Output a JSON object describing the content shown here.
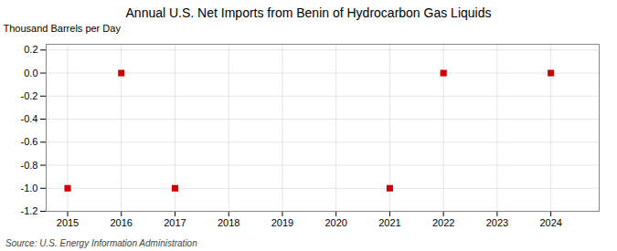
{
  "chart_data": {
    "type": "scatter",
    "title": "Annual U.S. Net Imports from Benin of Hydrocarbon Gas Liquids",
    "ylabel": "Thousand Barrels per Day",
    "source": "Source: U.S. Energy Information Administration",
    "x": [
      2015,
      2016,
      2017,
      2021,
      2022,
      2024
    ],
    "values": [
      -1,
      0,
      -1,
      -1,
      0,
      0
    ],
    "color": "#cc0000",
    "marker": "square",
    "xlim": [
      2014.6,
      2024.9
    ],
    "ylim": [
      -1.2,
      0.25
    ],
    "xticks": [
      2015,
      2016,
      2017,
      2018,
      2019,
      2020,
      2021,
      2022,
      2023,
      2024
    ],
    "yticks": [
      0.2,
      {
        "value": 0,
        "label": "0.0"
      },
      -0.2,
      -0.4,
      -0.6,
      -0.8,
      {
        "value": -1,
        "label": "-1.0"
      },
      -1.2
    ],
    "grid": true
  }
}
